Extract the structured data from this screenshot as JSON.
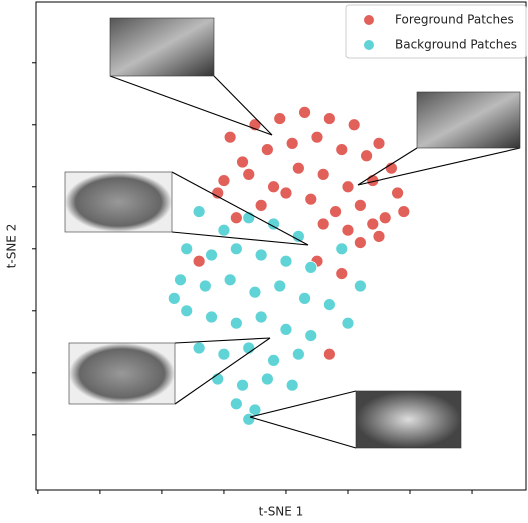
{
  "chart_data": {
    "type": "scatter",
    "x_label": "t-SNE 1",
    "y_label": "t-SNE 2",
    "xlim": [
      -0.03,
      7.87
    ],
    "ylim": [
      0.11,
      7.98
    ],
    "xticks": [
      0,
      1,
      2,
      3,
      4,
      5,
      6,
      7
    ],
    "yticks": [
      1,
      2,
      3,
      4,
      5,
      6,
      7
    ],
    "legend": "upper right",
    "series": [
      {
        "name": "Foreground Patches",
        "color": "#e2605a",
        "x": [
          3.1,
          3.5,
          3.9,
          4.3,
          4.7,
          5.1,
          5.5,
          3.3,
          3.7,
          4.1,
          4.5,
          4.9,
          5.3,
          5.7,
          3.0,
          3.4,
          3.8,
          4.2,
          4.6,
          5.0,
          5.4,
          5.8,
          4.4,
          4.8,
          5.2,
          5.6,
          4.6,
          5.0,
          5.4,
          5.2,
          3.6,
          4.0,
          2.9,
          5.5,
          5.9,
          3.2,
          4.5,
          4.9,
          2.6,
          4.7
        ],
        "values": [
          5.8,
          6.0,
          6.1,
          6.2,
          6.1,
          6.0,
          5.7,
          5.4,
          5.6,
          5.7,
          5.8,
          5.6,
          5.5,
          5.3,
          5.1,
          5.2,
          5.0,
          5.3,
          5.2,
          5.0,
          5.1,
          4.9,
          4.8,
          4.6,
          4.7,
          4.5,
          4.4,
          4.3,
          4.4,
          4.1,
          4.7,
          4.9,
          4.9,
          4.2,
          4.6,
          4.5,
          3.8,
          3.6,
          3.8,
          2.3
        ]
      },
      {
        "name": "Background Patches",
        "color": "#5fd3d6",
        "x": [
          2.6,
          3.0,
          3.4,
          3.8,
          4.2,
          2.4,
          2.8,
          3.2,
          3.6,
          4.0,
          4.4,
          2.3,
          2.7,
          3.1,
          3.5,
          3.9,
          4.3,
          4.7,
          2.4,
          2.8,
          3.2,
          3.6,
          4.0,
          4.4,
          5.0,
          2.6,
          3.0,
          3.4,
          3.8,
          4.2,
          2.9,
          3.3,
          3.7,
          4.1,
          3.2,
          3.5,
          3.4,
          2.2,
          5.2,
          4.9
        ],
        "values": [
          4.6,
          4.3,
          4.5,
          4.4,
          4.2,
          4.0,
          3.9,
          4.0,
          3.9,
          3.8,
          3.7,
          3.5,
          3.4,
          3.5,
          3.3,
          3.4,
          3.2,
          3.1,
          3.0,
          2.9,
          2.8,
          2.9,
          2.7,
          2.6,
          2.8,
          2.4,
          2.3,
          2.4,
          2.2,
          2.3,
          1.9,
          1.8,
          1.9,
          1.8,
          1.5,
          1.4,
          1.25,
          3.2,
          3.4,
          4.0
        ]
      }
    ]
  }
}
